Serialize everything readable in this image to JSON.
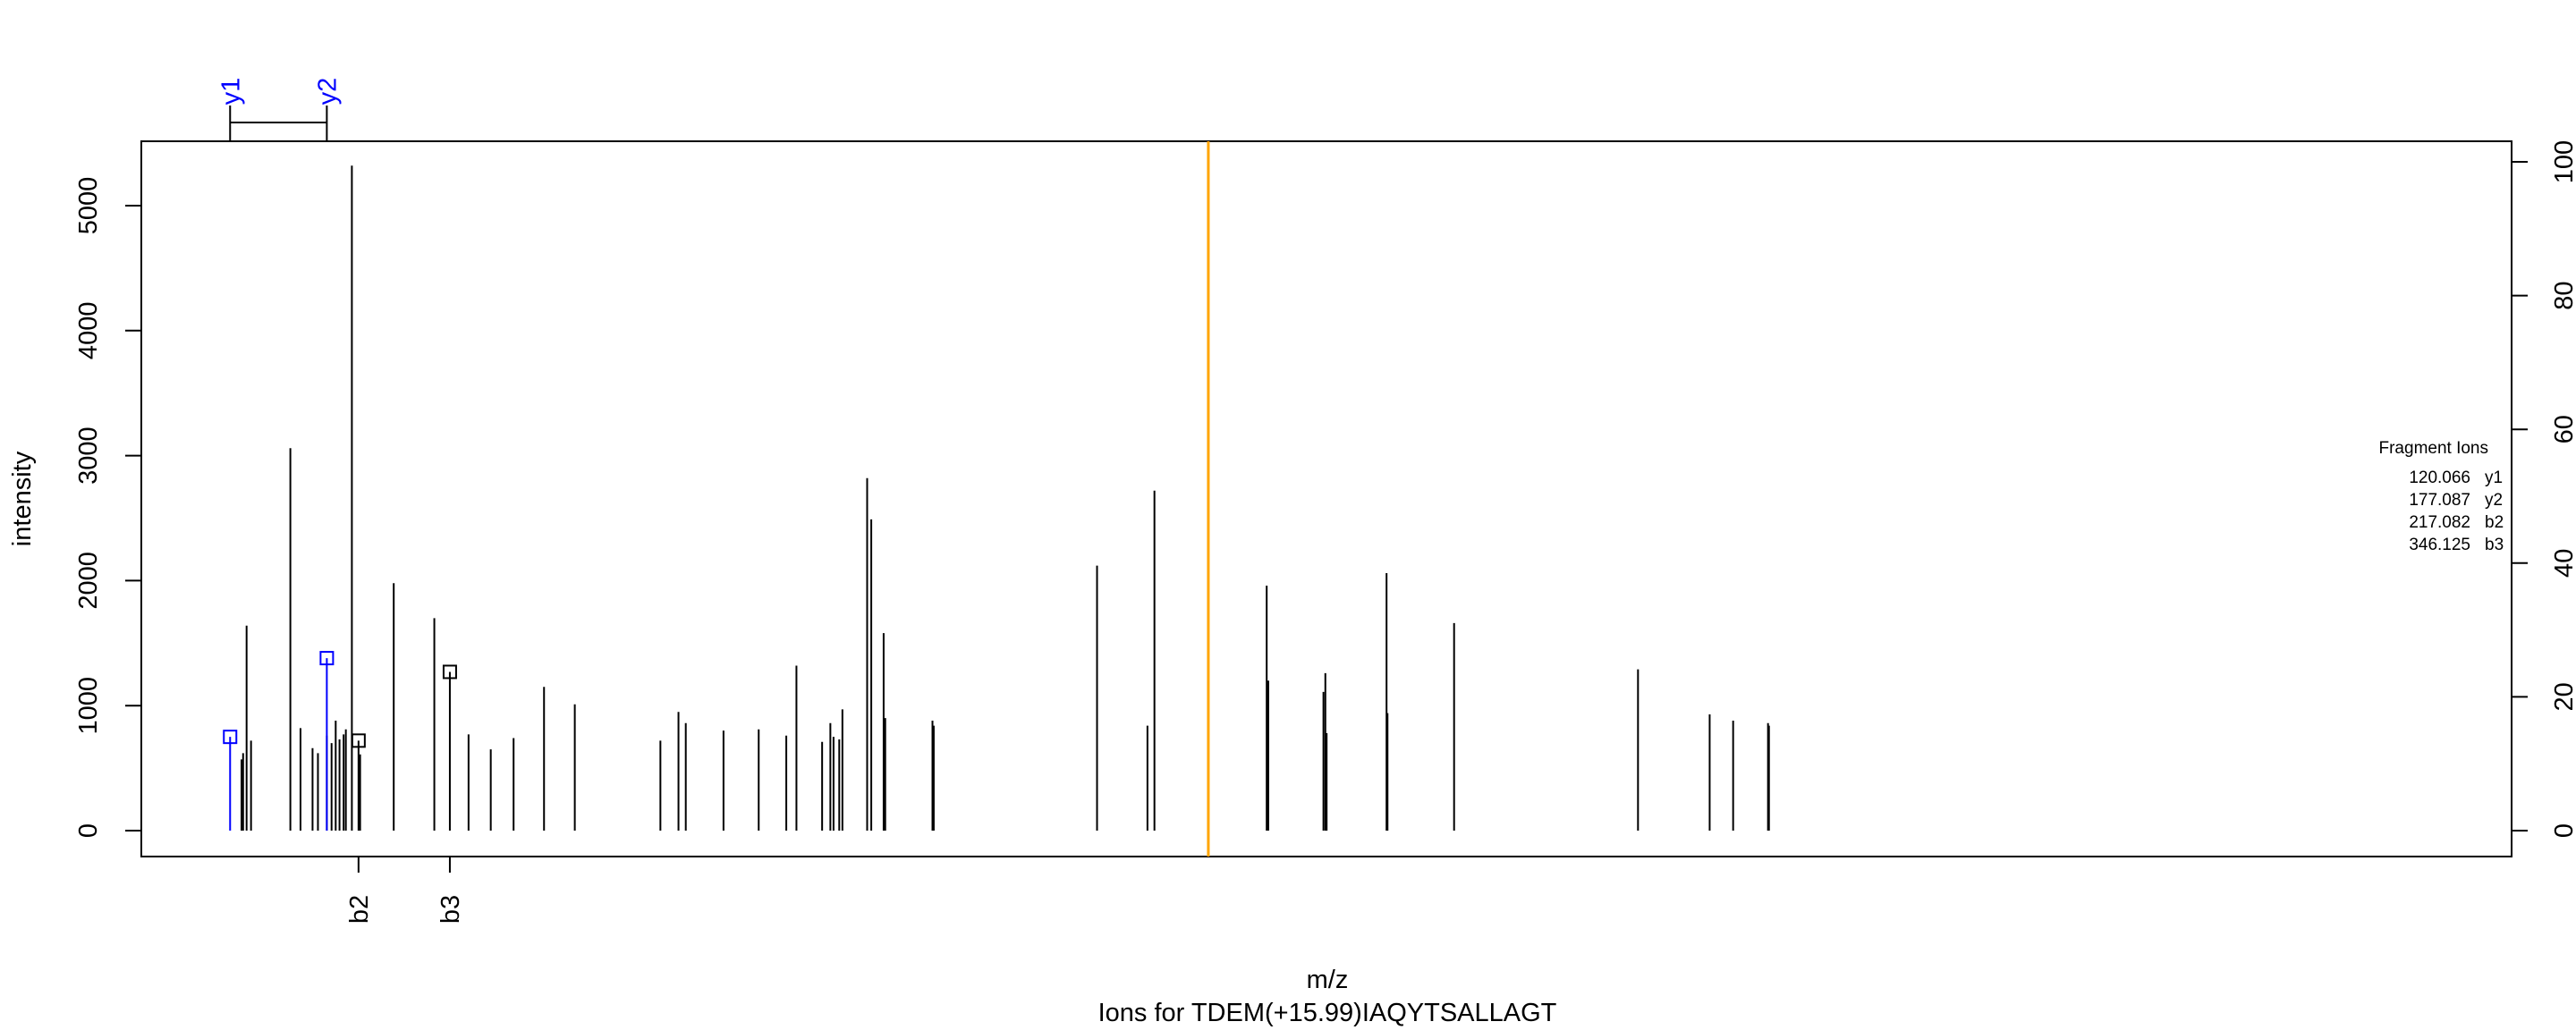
{
  "chart_data": {
    "type": "bar",
    "title": "Ions for TDEM(+15.99)IAQYTSALLAGT",
    "xlabel": "m/z",
    "ylabel": "intensity",
    "ylim": [
      0,
      5500
    ],
    "y_ticks": [
      "0",
      "1000",
      "2000",
      "3000",
      "4000",
      "5000"
    ],
    "y2_ticks": [
      "0",
      "20",
      "40",
      "60",
      "80",
      "100"
    ],
    "y2_max": 100,
    "x_range": [
      48.0,
      795.5
    ],
    "grid": false,
    "marker": {
      "mz": 384.5
    },
    "peaks": {
      "mz": [
        76.6,
        79.6,
        80.1,
        81.2,
        82.6,
        95.0,
        98.2,
        102.0,
        103.7,
        106.5,
        108.0,
        109.3,
        110.5,
        111.8,
        112.5,
        113.0,
        114.4,
        117.0,
        127.6,
        140.4,
        151.2,
        158.2,
        165.4,
        175.0,
        184.7,
        211.7,
        217.4,
        219.7,
        231.6,
        242.7,
        251.4,
        254.6,
        262.7,
        265.3,
        266.3,
        268.1,
        269.1,
        276.9,
        278.2,
        282.1,
        282.6,
        297.5,
        297.9,
        349.4,
        365.3,
        367.5,
        402.9,
        403.4,
        420.8,
        421.4,
        421.8,
        440.7,
        441.0,
        462.0,
        520.0,
        542.6,
        550.0,
        561.0,
        561.3,
        587.6,
        593.5,
        636.7,
        676.0,
        700.2,
        709.7,
        751.0,
        794.0
      ],
      "intensity": [
        0,
        570,
        620,
        1640,
        720,
        3060,
        820,
        660,
        620,
        760,
        700,
        880,
        730,
        770,
        810,
        0,
        5320,
        610,
        1980,
        1700,
        770,
        650,
        740,
        1150,
        1010,
        720,
        950,
        860,
        800,
        810,
        760,
        1320,
        710,
        860,
        750,
        730,
        970,
        2820,
        2490,
        1580,
        900,
        880,
        840,
        2120,
        840,
        2720,
        1960,
        1200,
        1110,
        1260,
        780,
        2060,
        940,
        1660,
        1290,
        930,
        880,
        860,
        840,
        0,
        0,
        0,
        0,
        0,
        0,
        0,
        0
      ]
    },
    "annotations": [
      {
        "label": "y1",
        "mz": 76.0,
        "intensity": 750,
        "color": "#0000ff"
      },
      {
        "label": "y2",
        "mz": 106.5,
        "intensity": 1380,
        "color": "#0000ff"
      },
      {
        "label": "b2",
        "mz": 116.5,
        "intensity": 720,
        "color": "#000000"
      },
      {
        "label": "b3",
        "mz": 145.3,
        "intensity": 1270,
        "color": "#000000"
      }
    ],
    "top_ion_labels": [
      {
        "label": "y1",
        "mz": 76.0
      },
      {
        "label": "y2",
        "mz": 106.5
      }
    ],
    "bottom_ion_labels": [
      {
        "label": "b2",
        "mz": 116.5
      },
      {
        "label": "b3",
        "mz": 145.3
      }
    ],
    "legend": {
      "placement": "right",
      "title": "Fragment Ions",
      "entries": [
        {
          "mz": "120.066",
          "ion": "y1"
        },
        {
          "mz": "177.087",
          "ion": "y2"
        },
        {
          "mz": "217.082",
          "ion": "b2"
        },
        {
          "mz": "346.125",
          "ion": "b3"
        }
      ]
    },
    "colors": {
      "peak": "#000000",
      "marker": "#ffa500",
      "y_ion": "#0000ff",
      "b_ion": "#000000"
    }
  }
}
